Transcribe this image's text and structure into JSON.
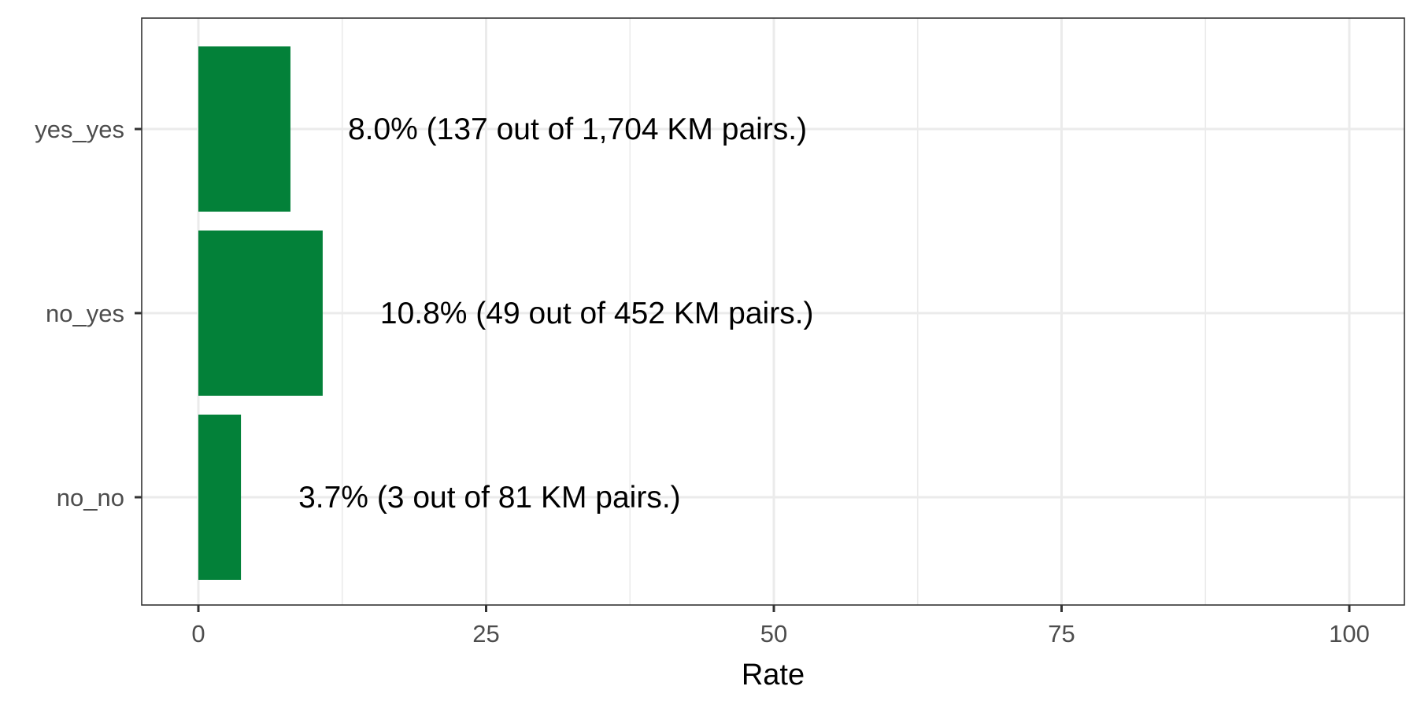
{
  "chart_data": {
    "type": "bar",
    "orientation": "horizontal",
    "categories": [
      "no_no",
      "no_yes",
      "yes_yes"
    ],
    "values": [
      3.7,
      10.8,
      8.0
    ],
    "data_labels": [
      "3.7% (3 out of 81 KM pairs.)",
      "10.8% (49 out of 452 KM pairs.)",
      "8.0% (137 out of 1,704 KM pairs.)"
    ],
    "xlabel": "Rate",
    "ylabel": "",
    "title": "",
    "xlim": [
      0,
      100
    ],
    "x_ticks": [
      "0",
      "25",
      "50",
      "75",
      "100"
    ],
    "grid": true,
    "bar_color": "#038139",
    "grid_color": "#ebebeb",
    "panel_border_color": "#333333",
    "tick_label_color": "#4d4d4d"
  }
}
